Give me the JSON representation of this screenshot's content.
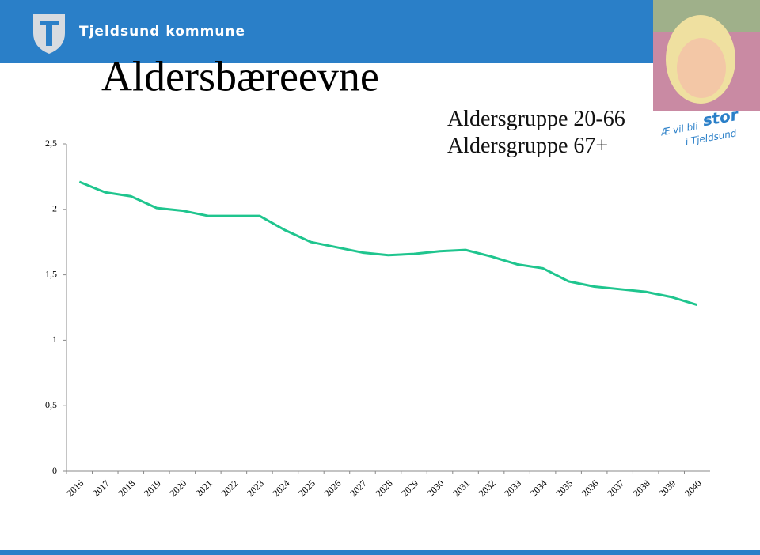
{
  "header": {
    "organization": "Tjeldsund kommune",
    "slogan": [
      "Æ vil bli",
      "stor",
      "i Tjeldsund"
    ]
  },
  "chart_data": {
    "type": "line",
    "title": "Aldersbæreevne",
    "annotations": [
      "Aldersgruppe 20-66",
      "Aldersgruppe 67+"
    ],
    "categories": [
      "2016",
      "2017",
      "2018",
      "2019",
      "2020",
      "2021",
      "2022",
      "2023",
      "2024",
      "2025",
      "2026",
      "2027",
      "2028",
      "2029",
      "2030",
      "2031",
      "2032",
      "2033",
      "2034",
      "2035",
      "2036",
      "2037",
      "2038",
      "2039",
      "2040"
    ],
    "values": [
      2.21,
      2.13,
      2.1,
      2.01,
      1.99,
      1.95,
      1.95,
      1.95,
      1.84,
      1.75,
      1.71,
      1.67,
      1.65,
      1.66,
      1.68,
      1.69,
      1.64,
      1.58,
      1.55,
      1.45,
      1.41,
      1.39,
      1.37,
      1.33,
      1.27
    ],
    "color": "#1fc58e",
    "ylim": [
      0,
      2.5
    ],
    "yticks": [
      0,
      {
        "value": 0.5,
        "label": "0,5"
      },
      1,
      {
        "value": 1.5,
        "label": "1,5"
      },
      2,
      {
        "value": 2.5,
        "label": "2,5"
      }
    ],
    "grid": false
  }
}
